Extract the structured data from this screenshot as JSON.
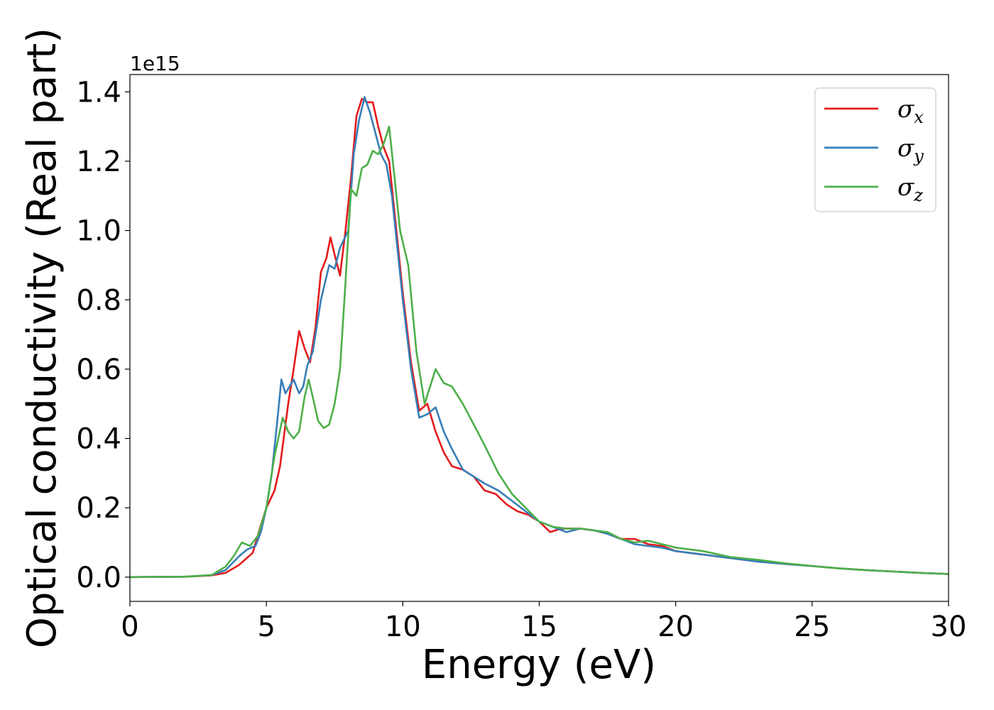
{
  "chart_data": {
    "type": "line",
    "xlabel": "Energy (eV)",
    "ylabel": "Optical conductivity (Real part)",
    "y_offset_label": "1e15",
    "xlim": [
      0,
      30
    ],
    "ylim": [
      -0.07,
      1.45
    ],
    "xticks": [
      "0",
      "5",
      "10",
      "15",
      "20",
      "25",
      "30"
    ],
    "yticks": [
      "0.0",
      "0.2",
      "0.4",
      "0.6",
      "0.8",
      "1.0",
      "1.2",
      "1.4"
    ],
    "grid": false,
    "legend_position": "top-right",
    "series": [
      {
        "name": "σx",
        "symbol": "σ",
        "subscript": "x",
        "color": "#e41a1c",
        "points": [
          [
            0,
            0
          ],
          [
            2,
            0.001
          ],
          [
            3,
            0.005
          ],
          [
            3.5,
            0.012
          ],
          [
            4,
            0.035
          ],
          [
            4.5,
            0.07
          ],
          [
            4.8,
            0.15
          ],
          [
            5,
            0.2
          ],
          [
            5.3,
            0.25
          ],
          [
            5.5,
            0.32
          ],
          [
            5.8,
            0.5
          ],
          [
            6,
            0.6
          ],
          [
            6.2,
            0.71
          ],
          [
            6.4,
            0.66
          ],
          [
            6.6,
            0.62
          ],
          [
            6.8,
            0.72
          ],
          [
            7,
            0.88
          ],
          [
            7.2,
            0.92
          ],
          [
            7.35,
            0.98
          ],
          [
            7.5,
            0.93
          ],
          [
            7.7,
            0.87
          ],
          [
            7.9,
            1.0
          ],
          [
            8.1,
            1.15
          ],
          [
            8.3,
            1.33
          ],
          [
            8.5,
            1.38
          ],
          [
            8.7,
            1.37
          ],
          [
            8.9,
            1.37
          ],
          [
            9.1,
            1.3
          ],
          [
            9.3,
            1.24
          ],
          [
            9.5,
            1.2
          ],
          [
            9.7,
            1.05
          ],
          [
            10,
            0.82
          ],
          [
            10.3,
            0.62
          ],
          [
            10.6,
            0.48
          ],
          [
            10.9,
            0.5
          ],
          [
            11.2,
            0.42
          ],
          [
            11.5,
            0.36
          ],
          [
            11.8,
            0.32
          ],
          [
            12.2,
            0.31
          ],
          [
            12.6,
            0.29
          ],
          [
            13,
            0.25
          ],
          [
            13.4,
            0.24
          ],
          [
            13.8,
            0.21
          ],
          [
            14.2,
            0.19
          ],
          [
            14.6,
            0.18
          ],
          [
            15,
            0.16
          ],
          [
            15.4,
            0.13
          ],
          [
            15.8,
            0.14
          ],
          [
            16.5,
            0.14
          ],
          [
            17,
            0.135
          ],
          [
            17.5,
            0.125
          ],
          [
            18,
            0.11
          ],
          [
            18.5,
            0.11
          ],
          [
            19,
            0.095
          ],
          [
            19.5,
            0.09
          ],
          [
            20,
            0.075
          ],
          [
            20.5,
            0.07
          ],
          [
            21,
            0.065
          ],
          [
            22,
            0.055
          ],
          [
            23,
            0.045
          ],
          [
            24,
            0.038
          ],
          [
            25,
            0.032
          ],
          [
            26,
            0.025
          ],
          [
            27,
            0.02
          ],
          [
            28,
            0.016
          ],
          [
            29,
            0.012
          ],
          [
            30,
            0.009
          ]
        ]
      },
      {
        "name": "σy",
        "symbol": "σ",
        "subscript": "y",
        "color": "#377eb8",
        "points": [
          [
            0,
            0
          ],
          [
            2,
            0.001
          ],
          [
            3,
            0.006
          ],
          [
            3.5,
            0.02
          ],
          [
            4,
            0.06
          ],
          [
            4.3,
            0.08
          ],
          [
            4.6,
            0.09
          ],
          [
            4.8,
            0.13
          ],
          [
            5,
            0.2
          ],
          [
            5.2,
            0.3
          ],
          [
            5.4,
            0.45
          ],
          [
            5.55,
            0.57
          ],
          [
            5.7,
            0.53
          ],
          [
            5.85,
            0.55
          ],
          [
            6,
            0.57
          ],
          [
            6.2,
            0.53
          ],
          [
            6.35,
            0.55
          ],
          [
            6.5,
            0.61
          ],
          [
            6.7,
            0.65
          ],
          [
            7,
            0.8
          ],
          [
            7.3,
            0.9
          ],
          [
            7.5,
            0.89
          ],
          [
            7.7,
            0.95
          ],
          [
            8,
            1.0
          ],
          [
            8.2,
            1.22
          ],
          [
            8.4,
            1.32
          ],
          [
            8.6,
            1.385
          ],
          [
            8.8,
            1.34
          ],
          [
            9,
            1.28
          ],
          [
            9.2,
            1.22
          ],
          [
            9.4,
            1.19
          ],
          [
            9.6,
            1.1
          ],
          [
            10,
            0.8
          ],
          [
            10.3,
            0.6
          ],
          [
            10.6,
            0.46
          ],
          [
            10.9,
            0.47
          ],
          [
            11.2,
            0.49
          ],
          [
            11.5,
            0.42
          ],
          [
            11.8,
            0.37
          ],
          [
            12.2,
            0.31
          ],
          [
            12.6,
            0.29
          ],
          [
            13,
            0.27
          ],
          [
            13.5,
            0.25
          ],
          [
            14,
            0.22
          ],
          [
            14.5,
            0.19
          ],
          [
            15,
            0.16
          ],
          [
            15.5,
            0.145
          ],
          [
            16,
            0.13
          ],
          [
            16.5,
            0.14
          ],
          [
            17,
            0.135
          ],
          [
            17.5,
            0.125
          ],
          [
            18,
            0.11
          ],
          [
            18.5,
            0.095
          ],
          [
            19,
            0.09
          ],
          [
            19.5,
            0.085
          ],
          [
            20,
            0.075
          ],
          [
            21,
            0.065
          ],
          [
            22,
            0.055
          ],
          [
            23,
            0.045
          ],
          [
            24,
            0.038
          ],
          [
            25,
            0.032
          ],
          [
            26,
            0.025
          ],
          [
            27,
            0.02
          ],
          [
            28,
            0.016
          ],
          [
            29,
            0.012
          ],
          [
            30,
            0.009
          ]
        ]
      },
      {
        "name": "σz",
        "symbol": "σ",
        "subscript": "z",
        "color": "#4daf4a",
        "points": [
          [
            0,
            0
          ],
          [
            2,
            0.001
          ],
          [
            3,
            0.006
          ],
          [
            3.5,
            0.03
          ],
          [
            3.8,
            0.06
          ],
          [
            4.1,
            0.1
          ],
          [
            4.4,
            0.09
          ],
          [
            4.7,
            0.12
          ],
          [
            5,
            0.2
          ],
          [
            5.3,
            0.35
          ],
          [
            5.6,
            0.46
          ],
          [
            5.8,
            0.42
          ],
          [
            6,
            0.4
          ],
          [
            6.2,
            0.42
          ],
          [
            6.4,
            0.52
          ],
          [
            6.55,
            0.57
          ],
          [
            6.7,
            0.52
          ],
          [
            6.9,
            0.45
          ],
          [
            7.1,
            0.43
          ],
          [
            7.3,
            0.44
          ],
          [
            7.5,
            0.5
          ],
          [
            7.7,
            0.6
          ],
          [
            7.9,
            0.85
          ],
          [
            8.1,
            1.12
          ],
          [
            8.3,
            1.1
          ],
          [
            8.5,
            1.18
          ],
          [
            8.7,
            1.19
          ],
          [
            8.9,
            1.23
          ],
          [
            9.1,
            1.22
          ],
          [
            9.3,
            1.25
          ],
          [
            9.5,
            1.3
          ],
          [
            9.7,
            1.15
          ],
          [
            9.9,
            1.0
          ],
          [
            10.2,
            0.9
          ],
          [
            10.5,
            0.65
          ],
          [
            10.8,
            0.5
          ],
          [
            11.2,
            0.6
          ],
          [
            11.5,
            0.56
          ],
          [
            11.8,
            0.55
          ],
          [
            12.2,
            0.5
          ],
          [
            12.6,
            0.44
          ],
          [
            13,
            0.38
          ],
          [
            13.5,
            0.3
          ],
          [
            14,
            0.24
          ],
          [
            14.5,
            0.2
          ],
          [
            15,
            0.16
          ],
          [
            15.5,
            0.145
          ],
          [
            16,
            0.14
          ],
          [
            16.5,
            0.14
          ],
          [
            17,
            0.135
          ],
          [
            17.5,
            0.13
          ],
          [
            18,
            0.11
          ],
          [
            18.5,
            0.1
          ],
          [
            19,
            0.105
          ],
          [
            19.5,
            0.095
          ],
          [
            20,
            0.085
          ],
          [
            21,
            0.075
          ],
          [
            22,
            0.058
          ],
          [
            23,
            0.05
          ],
          [
            24,
            0.04
          ],
          [
            25,
            0.032
          ],
          [
            26,
            0.025
          ],
          [
            27,
            0.02
          ],
          [
            28,
            0.016
          ],
          [
            29,
            0.012
          ],
          [
            30,
            0.009
          ]
        ]
      }
    ]
  }
}
